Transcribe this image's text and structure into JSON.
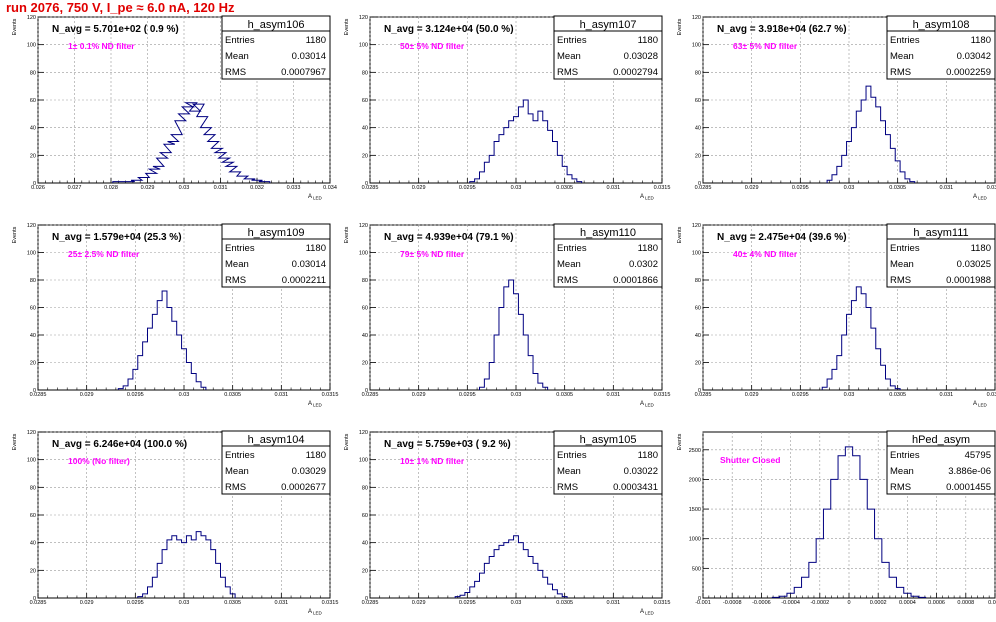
{
  "page_title": "run 2076,   750 V, I_pe ≈ 6.0 nA, 120 Hz",
  "colors": {
    "histogram": "#000080",
    "note": "#ff00ff",
    "title": "#e00000",
    "text": "#000000"
  },
  "stat_labels": {
    "entries": "Entries",
    "mean": "Mean",
    "rms": "RMS"
  },
  "chart_data": [
    {
      "type": "histogram",
      "name": "h_asym106",
      "nlabel": "N_avg = 5.701e+02 ( 0.9 %)",
      "note": "1± 0.1% ND filter",
      "stats": {
        "entries": "1180",
        "mean": "0.03014",
        "rms": "0.0007967"
      },
      "xlim": [
        0.026,
        0.034
      ],
      "ylim": [
        0,
        120
      ],
      "xticks": [
        "0.026",
        "0.027",
        "0.028",
        "0.029",
        "0.03",
        "0.031",
        "0.032",
        "0.033",
        "0.034"
      ],
      "yticks": [
        "0",
        "20",
        "40",
        "60",
        "80",
        "100",
        "120"
      ],
      "xlabel": "A_LED",
      "ylabel": "Events",
      "grid": true,
      "bins": [
        [
          0.0282,
          1
        ],
        [
          0.0285,
          1
        ],
        [
          0.0287,
          2
        ],
        [
          0.0289,
          4
        ],
        [
          0.0291,
          7
        ],
        [
          0.0292,
          10
        ],
        [
          0.0293,
          12
        ],
        [
          0.0294,
          18
        ],
        [
          0.0295,
          22
        ],
        [
          0.0296,
          28
        ],
        [
          0.0297,
          30
        ],
        [
          0.0298,
          35
        ],
        [
          0.0299,
          45
        ],
        [
          0.03,
          50
        ],
        [
          0.0301,
          55
        ],
        [
          0.0302,
          58
        ],
        [
          0.0303,
          52
        ],
        [
          0.0304,
          57
        ],
        [
          0.0305,
          48
        ],
        [
          0.0306,
          40
        ],
        [
          0.0307,
          35
        ],
        [
          0.0308,
          30
        ],
        [
          0.0309,
          25
        ],
        [
          0.031,
          22
        ],
        [
          0.0311,
          18
        ],
        [
          0.0312,
          15
        ],
        [
          0.0313,
          12
        ],
        [
          0.0314,
          8
        ],
        [
          0.0316,
          5
        ],
        [
          0.0318,
          3
        ],
        [
          0.032,
          2
        ],
        [
          0.0322,
          1
        ]
      ]
    },
    {
      "type": "histogram",
      "name": "h_asym107",
      "nlabel": "N_avg = 3.124e+04 (50.0 %)",
      "note": "50± 5% ND filter",
      "stats": {
        "entries": "1180",
        "mean": "0.03028",
        "rms": "0.0002794"
      },
      "xlim": [
        0.0285,
        0.0315
      ],
      "ylim": [
        0,
        120
      ],
      "xticks": [
        "0.0285",
        "0.029",
        "0.0295",
        "0.03",
        "0.0305",
        "0.031",
        "0.0315"
      ],
      "yticks": [
        "0",
        "20",
        "40",
        "60",
        "80",
        "100",
        "120"
      ],
      "xlabel": "A_LED",
      "ylabel": "Events",
      "grid": true,
      "bins": [
        [
          0.02955,
          1
        ],
        [
          0.0296,
          3
        ],
        [
          0.02965,
          8
        ],
        [
          0.0297,
          15
        ],
        [
          0.02975,
          20
        ],
        [
          0.0298,
          30
        ],
        [
          0.02985,
          35
        ],
        [
          0.0299,
          40
        ],
        [
          0.02995,
          45
        ],
        [
          0.03,
          48
        ],
        [
          0.03005,
          55
        ],
        [
          0.0301,
          60
        ],
        [
          0.03015,
          50
        ],
        [
          0.0302,
          45
        ],
        [
          0.03025,
          52
        ],
        [
          0.0303,
          45
        ],
        [
          0.03035,
          38
        ],
        [
          0.0304,
          30
        ],
        [
          0.03045,
          20
        ],
        [
          0.0305,
          12
        ],
        [
          0.03055,
          6
        ],
        [
          0.0306,
          3
        ],
        [
          0.03065,
          1
        ]
      ]
    },
    {
      "type": "histogram",
      "name": "h_asym108",
      "nlabel": "N_avg = 3.918e+04 (62.7 %)",
      "note": "63± 5% ND filter",
      "stats": {
        "entries": "1180",
        "mean": "0.03042",
        "rms": "0.0002259"
      },
      "xlim": [
        0.0285,
        0.0315
      ],
      "ylim": [
        0,
        120
      ],
      "xticks": [
        "0.0285",
        "0.029",
        "0.0295",
        "0.03",
        "0.0305",
        "0.031",
        "0.0315"
      ],
      "yticks": [
        "0",
        "20",
        "40",
        "60",
        "80",
        "100",
        "120"
      ],
      "xlabel": "A_LED",
      "ylabel": "Events",
      "grid": true,
      "bins": [
        [
          0.0298,
          2
        ],
        [
          0.02985,
          6
        ],
        [
          0.0299,
          12
        ],
        [
          0.02995,
          20
        ],
        [
          0.03,
          30
        ],
        [
          0.03005,
          40
        ],
        [
          0.0301,
          52
        ],
        [
          0.03015,
          60
        ],
        [
          0.0302,
          70
        ],
        [
          0.03025,
          62
        ],
        [
          0.0303,
          55
        ],
        [
          0.03035,
          45
        ],
        [
          0.0304,
          35
        ],
        [
          0.03045,
          25
        ],
        [
          0.0305,
          16
        ],
        [
          0.03055,
          8
        ],
        [
          0.0306,
          3
        ],
        [
          0.03065,
          1
        ]
      ]
    },
    {
      "type": "histogram",
      "name": "h_asym109",
      "nlabel": "N_avg = 1.579e+04 (25.3 %)",
      "note": "25± 2.5% ND filter",
      "stats": {
        "entries": "1180",
        "mean": "0.03014",
        "rms": "0.0002211"
      },
      "xlim": [
        0.0285,
        0.0315
      ],
      "ylim": [
        0,
        120
      ],
      "xticks": [
        "0.0285",
        "0.029",
        "0.0295",
        "0.03",
        "0.0305",
        "0.031",
        "0.0315"
      ],
      "yticks": [
        "0",
        "20",
        "40",
        "60",
        "80",
        "100",
        "120"
      ],
      "xlabel": "A_LED",
      "ylabel": "Events",
      "grid": true,
      "bins": [
        [
          0.02935,
          1
        ],
        [
          0.0294,
          3
        ],
        [
          0.02945,
          8
        ],
        [
          0.0295,
          15
        ],
        [
          0.02955,
          25
        ],
        [
          0.0296,
          35
        ],
        [
          0.02965,
          45
        ],
        [
          0.0297,
          55
        ],
        [
          0.02975,
          65
        ],
        [
          0.0298,
          72
        ],
        [
          0.02985,
          60
        ],
        [
          0.0299,
          50
        ],
        [
          0.02995,
          40
        ],
        [
          0.03,
          30
        ],
        [
          0.03005,
          20
        ],
        [
          0.0301,
          12
        ],
        [
          0.03015,
          6
        ],
        [
          0.0302,
          2
        ]
      ]
    },
    {
      "type": "histogram",
      "name": "h_asym110",
      "nlabel": "N_avg = 4.939e+04 (79.1 %)",
      "note": "79± 5% ND filter",
      "stats": {
        "entries": "1180",
        "mean": "0.0302",
        "rms": "0.0001866"
      },
      "xlim": [
        0.0285,
        0.0315
      ],
      "ylim": [
        0,
        120
      ],
      "xticks": [
        "0.0285",
        "0.029",
        "0.0295",
        "0.03",
        "0.0305",
        "0.031",
        "0.0315"
      ],
      "yticks": [
        "0",
        "20",
        "40",
        "60",
        "80",
        "100",
        "120"
      ],
      "xlabel": "A_LED",
      "ylabel": "Events",
      "grid": true,
      "bins": [
        [
          0.02965,
          2
        ],
        [
          0.0297,
          8
        ],
        [
          0.02975,
          20
        ],
        [
          0.0298,
          40
        ],
        [
          0.02985,
          60
        ],
        [
          0.0299,
          75
        ],
        [
          0.02995,
          80
        ],
        [
          0.03,
          70
        ],
        [
          0.03005,
          55
        ],
        [
          0.0301,
          40
        ],
        [
          0.03015,
          25
        ],
        [
          0.0302,
          12
        ],
        [
          0.03025,
          5
        ],
        [
          0.0303,
          2
        ]
      ]
    },
    {
      "type": "histogram",
      "name": "h_asym111",
      "nlabel": "N_avg = 2.475e+04 (39.6 %)",
      "note": "40± 4% ND filter",
      "stats": {
        "entries": "1180",
        "mean": "0.03025",
        "rms": "0.0001988"
      },
      "xlim": [
        0.0285,
        0.0315
      ],
      "ylim": [
        0,
        120
      ],
      "xticks": [
        "0.0285",
        "0.029",
        "0.0295",
        "0.03",
        "0.0305",
        "0.031",
        "0.0315"
      ],
      "yticks": [
        "0",
        "20",
        "40",
        "60",
        "80",
        "100",
        "120"
      ],
      "xlabel": "A_LED",
      "ylabel": "Events",
      "grid": true,
      "bins": [
        [
          0.02975,
          2
        ],
        [
          0.0298,
          8
        ],
        [
          0.02985,
          15
        ],
        [
          0.0299,
          25
        ],
        [
          0.02995,
          40
        ],
        [
          0.03,
          55
        ],
        [
          0.03005,
          65
        ],
        [
          0.0301,
          75
        ],
        [
          0.03015,
          70
        ],
        [
          0.0302,
          60
        ],
        [
          0.03025,
          45
        ],
        [
          0.0303,
          30
        ],
        [
          0.03035,
          18
        ],
        [
          0.0304,
          8
        ],
        [
          0.03045,
          3
        ],
        [
          0.0305,
          1
        ]
      ]
    },
    {
      "type": "histogram",
      "name": "h_asym104",
      "nlabel": "N_avg = 6.246e+04 (100.0 %)",
      "note": "100% (No filter)",
      "stats": {
        "entries": "1180",
        "mean": "0.03029",
        "rms": "0.0002677"
      },
      "xlim": [
        0.0285,
        0.0315
      ],
      "ylim": [
        0,
        120
      ],
      "xticks": [
        "0.0285",
        "0.029",
        "0.0295",
        "0.03",
        "0.0305",
        "0.031",
        "0.0315"
      ],
      "yticks": [
        "0",
        "20",
        "40",
        "60",
        "80",
        "100",
        "120"
      ],
      "xlabel": "A_LED",
      "ylabel": "Events",
      "grid": true,
      "bins": [
        [
          0.02955,
          1
        ],
        [
          0.0296,
          3
        ],
        [
          0.02965,
          8
        ],
        [
          0.0297,
          15
        ],
        [
          0.02975,
          25
        ],
        [
          0.0298,
          35
        ],
        [
          0.02985,
          42
        ],
        [
          0.0299,
          45
        ],
        [
          0.02995,
          42
        ],
        [
          0.03,
          40
        ],
        [
          0.03005,
          45
        ],
        [
          0.0301,
          42
        ],
        [
          0.03015,
          48
        ],
        [
          0.0302,
          45
        ],
        [
          0.03025,
          42
        ],
        [
          0.0303,
          35
        ],
        [
          0.03035,
          25
        ],
        [
          0.0304,
          15
        ],
        [
          0.03045,
          8
        ],
        [
          0.0305,
          3
        ]
      ]
    },
    {
      "type": "histogram",
      "name": "h_asym105",
      "nlabel": "N_avg = 5.759e+03 ( 9.2 %)",
      "note": "10± 1% ND filter",
      "stats": {
        "entries": "1180",
        "mean": "0.03022",
        "rms": "0.0003431"
      },
      "xlim": [
        0.0285,
        0.0315
      ],
      "ylim": [
        0,
        120
      ],
      "xticks": [
        "0.0285",
        "0.029",
        "0.0295",
        "0.03",
        "0.0305",
        "0.031",
        "0.0315"
      ],
      "yticks": [
        "0",
        "20",
        "40",
        "60",
        "80",
        "100",
        "120"
      ],
      "xlabel": "A_LED",
      "ylabel": "Events",
      "grid": true,
      "bins": [
        [
          0.0294,
          1
        ],
        [
          0.02945,
          2
        ],
        [
          0.0295,
          4
        ],
        [
          0.02955,
          8
        ],
        [
          0.0296,
          12
        ],
        [
          0.02965,
          18
        ],
        [
          0.0297,
          25
        ],
        [
          0.02975,
          30
        ],
        [
          0.0298,
          35
        ],
        [
          0.02985,
          38
        ],
        [
          0.0299,
          40
        ],
        [
          0.02995,
          42
        ],
        [
          0.03,
          45
        ],
        [
          0.03005,
          40
        ],
        [
          0.0301,
          35
        ],
        [
          0.03015,
          30
        ],
        [
          0.0302,
          25
        ],
        [
          0.03025,
          20
        ],
        [
          0.0303,
          15
        ],
        [
          0.03035,
          10
        ],
        [
          0.0304,
          6
        ],
        [
          0.03045,
          3
        ],
        [
          0.0305,
          1
        ]
      ]
    },
    {
      "type": "histogram",
      "name": "hPed_asym",
      "nlabel": "",
      "note": "Shutter Closed",
      "stats": {
        "entries": "45795",
        "mean": "3.886e-06",
        "rms": "0.0001455"
      },
      "xlim": [
        -0.001,
        0.001
      ],
      "ylim": [
        0,
        2800
      ],
      "xticks": [
        "-0.001",
        "-0.0008",
        "-0.0006",
        "-0.0004",
        "-0.0002",
        "0",
        "0.0002",
        "0.0004",
        "0.0006",
        "0.0008",
        "0.001"
      ],
      "yticks": [
        "0",
        "500",
        "1000",
        "1500",
        "2000",
        "2500"
      ],
      "xlabel": "",
      "ylabel": "Events",
      "grid": true,
      "bins": [
        [
          -0.0005,
          10
        ],
        [
          -0.00045,
          30
        ],
        [
          -0.0004,
          80
        ],
        [
          -0.00035,
          180
        ],
        [
          -0.0003,
          350
        ],
        [
          -0.00025,
          600
        ],
        [
          -0.0002,
          1000
        ],
        [
          -0.00015,
          1500
        ],
        [
          -0.0001,
          2000
        ],
        [
          -5e-05,
          2400
        ],
        [
          0,
          2550
        ],
        [
          5e-05,
          2400
        ],
        [
          0.0001,
          2000
        ],
        [
          0.00015,
          1500
        ],
        [
          0.0002,
          1000
        ],
        [
          0.00025,
          600
        ],
        [
          0.0003,
          350
        ],
        [
          0.00035,
          180
        ],
        [
          0.0004,
          80
        ],
        [
          0.00045,
          30
        ],
        [
          0.0005,
          10
        ]
      ]
    }
  ]
}
